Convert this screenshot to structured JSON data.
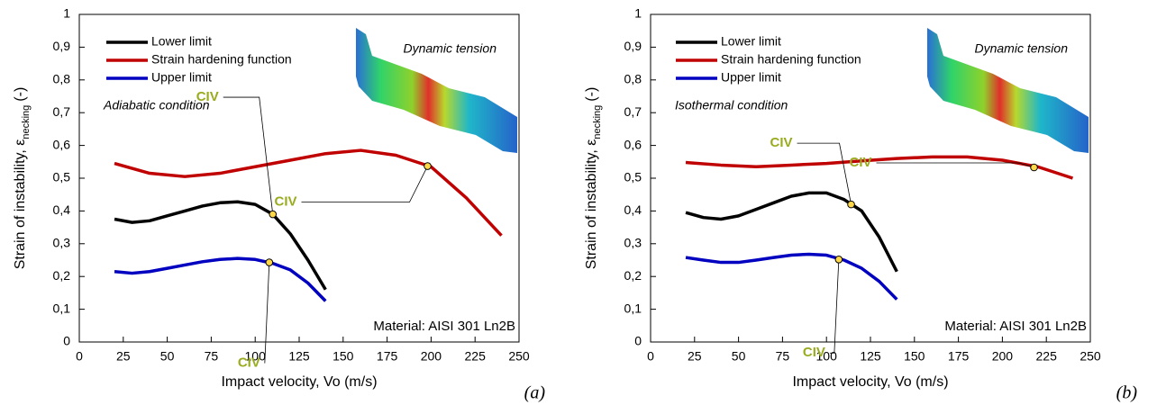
{
  "chart_data": [
    {
      "type": "line",
      "xlabel": "Impact velocity, Vo (m/s)",
      "ylabel": "Strain of instability, ε",
      "ylabel_subscript": "necking",
      "ylabel_unit": "(-)",
      "xlim": [
        0,
        250
      ],
      "xticks": [
        0,
        25,
        50,
        75,
        100,
        125,
        150,
        175,
        200,
        225,
        250
      ],
      "ylim": [
        0,
        1
      ],
      "yticks": [
        0,
        {
          "value": 0.1,
          "label": "0,1"
        },
        {
          "value": 0.2,
          "label": "0,2"
        },
        {
          "value": 0.3,
          "label": "0,3"
        },
        {
          "value": 0.4,
          "label": "0,4"
        },
        {
          "value": 0.5,
          "label": "0,5"
        },
        {
          "value": 0.6,
          "label": "0,6"
        },
        {
          "value": 0.7,
          "label": "0,7"
        },
        {
          "value": 0.8,
          "label": "0,8"
        },
        {
          "value": 0.9,
          "label": "0,9"
        },
        1
      ],
      "series": [
        {
          "name": "Lower limit",
          "color": "#000000",
          "x": [
            20,
            30,
            40,
            50,
            60,
            70,
            80,
            90,
            100,
            110,
            120,
            130,
            140
          ],
          "values": [
            0.375,
            0.365,
            0.37,
            0.385,
            0.4,
            0.415,
            0.425,
            0.428,
            0.42,
            0.39,
            0.33,
            0.25,
            0.16
          ]
        },
        {
          "name": "Strain hardening function",
          "color": "#c00000",
          "x": [
            20,
            40,
            60,
            80,
            100,
            120,
            140,
            160,
            180,
            200,
            220,
            240
          ],
          "values": [
            0.545,
            0.515,
            0.505,
            0.515,
            0.535,
            0.555,
            0.575,
            0.585,
            0.57,
            0.535,
            0.44,
            0.325
          ]
        },
        {
          "name": "Upper limit",
          "color": "#0000c0",
          "x": [
            20,
            30,
            40,
            50,
            60,
            70,
            80,
            90,
            100,
            110,
            120,
            130,
            140
          ],
          "values": [
            0.215,
            0.21,
            0.215,
            0.225,
            0.235,
            0.245,
            0.252,
            0.255,
            0.252,
            0.24,
            0.22,
            0.18,
            0.125
          ]
        }
      ],
      "annotations": [
        {
          "text": "CIV",
          "x": 110,
          "y": 0.39
        },
        {
          "text": "CIV",
          "x": 198,
          "y": 0.537
        },
        {
          "text": "CIV",
          "x": 108,
          "y": 0.243
        }
      ],
      "inset_label": "Dynamic tension",
      "condition": "Adiabatic condition",
      "material": "Material: AISI 301 Ln2B",
      "panel": "(a)"
    },
    {
      "type": "line",
      "xlabel": "Impact velocity, Vo (m/s)",
      "ylabel": "Strain of instability, ε",
      "ylabel_subscript": "necking",
      "ylabel_unit": "(-)",
      "xlim": [
        0,
        250
      ],
      "xticks": [
        0,
        25,
        50,
        75,
        100,
        125,
        150,
        175,
        200,
        225,
        250
      ],
      "ylim": [
        0,
        1
      ],
      "yticks": [
        0,
        {
          "value": 0.1,
          "label": "0,1"
        },
        {
          "value": 0.2,
          "label": "0,2"
        },
        {
          "value": 0.3,
          "label": "0,3"
        },
        {
          "value": 0.4,
          "label": "0,4"
        },
        {
          "value": 0.5,
          "label": "0,5"
        },
        {
          "value": 0.6,
          "label": "0,6"
        },
        {
          "value": 0.7,
          "label": "0,7"
        },
        {
          "value": 0.8,
          "label": "0,8"
        },
        {
          "value": 0.9,
          "label": "0,9"
        },
        1
      ],
      "series": [
        {
          "name": "Lower limit",
          "color": "#000000",
          "x": [
            20,
            30,
            40,
            50,
            60,
            70,
            80,
            90,
            100,
            110,
            120,
            130,
            140
          ],
          "values": [
            0.395,
            0.38,
            0.375,
            0.385,
            0.405,
            0.425,
            0.445,
            0.455,
            0.455,
            0.435,
            0.4,
            0.32,
            0.215
          ]
        },
        {
          "name": "Strain hardening function",
          "color": "#c00000",
          "x": [
            20,
            40,
            60,
            80,
            100,
            120,
            140,
            160,
            180,
            200,
            220,
            240
          ],
          "values": [
            0.548,
            0.54,
            0.535,
            0.54,
            0.545,
            0.553,
            0.56,
            0.565,
            0.565,
            0.555,
            0.535,
            0.5
          ]
        },
        {
          "name": "Upper limit",
          "color": "#0000c0",
          "x": [
            20,
            30,
            40,
            50,
            60,
            70,
            80,
            90,
            100,
            110,
            120,
            130,
            140
          ],
          "values": [
            0.258,
            0.25,
            0.243,
            0.243,
            0.25,
            0.258,
            0.265,
            0.268,
            0.265,
            0.25,
            0.225,
            0.185,
            0.13
          ]
        }
      ],
      "annotations": [
        {
          "text": "CIV",
          "x": 114,
          "y": 0.42
        },
        {
          "text": "CIV",
          "x": 218,
          "y": 0.533
        },
        {
          "text": "CIV",
          "x": 107,
          "y": 0.252
        }
      ],
      "inset_label": "Dynamic tension",
      "condition": "Isothermal condition",
      "material": "Material: AISI 301 Ln2B",
      "panel": "(b)"
    }
  ]
}
